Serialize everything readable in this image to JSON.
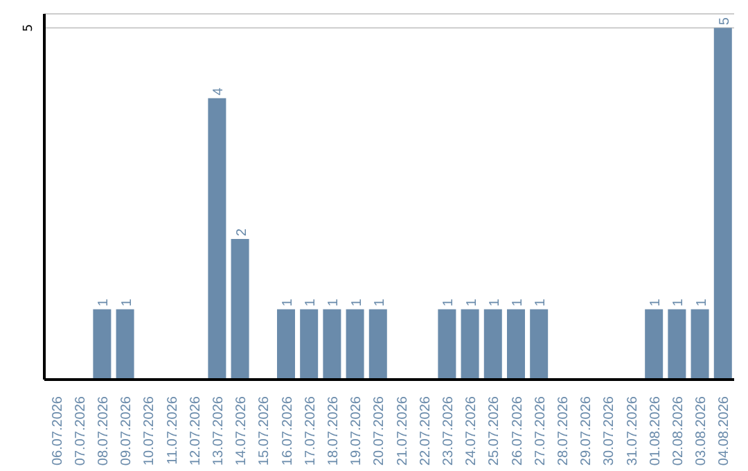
{
  "chart_data": {
    "type": "bar",
    "categories": [
      "06.07.2026",
      "07.07.2026",
      "08.07.2026",
      "09.07.2026",
      "10.07.2026",
      "11.07.2026",
      "12.07.2026",
      "13.07.2026",
      "14.07.2026",
      "15.07.2026",
      "16.07.2026",
      "17.07.2026",
      "18.07.2026",
      "19.07.2026",
      "20.07.2026",
      "21.07.2026",
      "22.07.2026",
      "23.07.2026",
      "24.07.2026",
      "25.07.2026",
      "26.07.2026",
      "27.07.2026",
      "28.07.2026",
      "29.07.2026",
      "30.07.2026",
      "31.07.2026",
      "01.08.2026",
      "02.08.2026",
      "03.08.2026",
      "04.08.2026"
    ],
    "values": [
      0,
      0,
      1,
      1,
      0,
      0,
      0,
      4,
      2,
      0,
      1,
      1,
      1,
      1,
      1,
      0,
      0,
      1,
      1,
      1,
      1,
      1,
      0,
      0,
      0,
      0,
      1,
      1,
      1,
      5
    ],
    "value_labels": [
      null,
      null,
      "1",
      "1",
      null,
      null,
      null,
      "4",
      "2",
      null,
      "1",
      "1",
      "1",
      "1",
      "1",
      null,
      null,
      "1",
      "1",
      "1",
      "1",
      "1",
      null,
      null,
      null,
      null,
      "1",
      "1",
      "1",
      "5"
    ],
    "color": "#6a8bab",
    "ylim": [
      0,
      5.2
    ],
    "yticks": [
      5
    ],
    "grid": "y"
  }
}
